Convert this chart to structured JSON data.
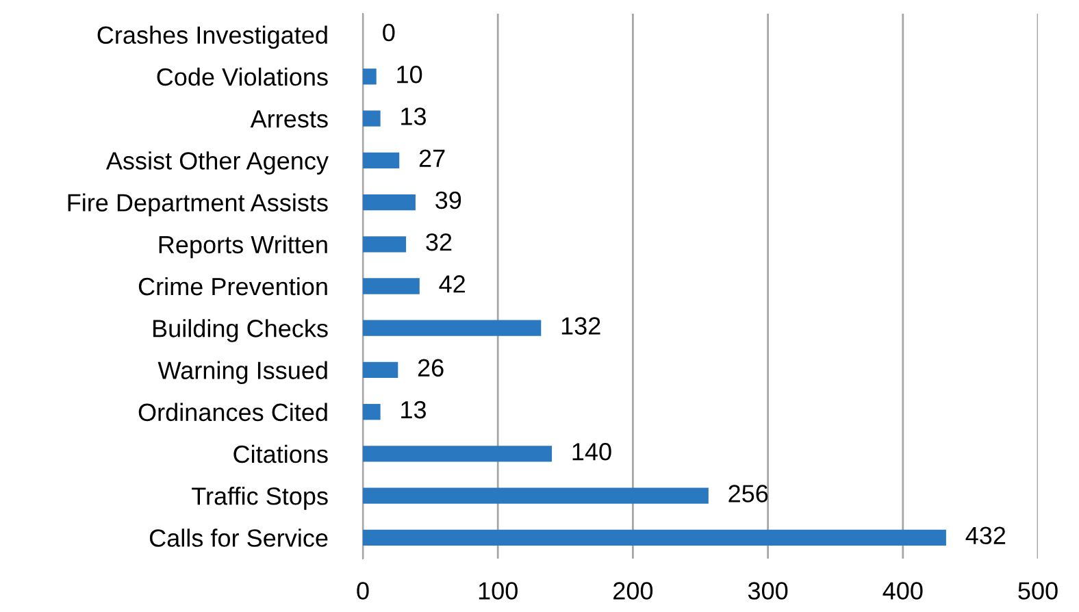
{
  "chart_data": {
    "type": "bar",
    "orientation": "horizontal",
    "categories": [
      "Crashes Investigated",
      "Code Violations",
      "Arrests",
      "Assist Other Agency",
      "Fire Department Assists",
      "Reports Written",
      "Crime Prevention",
      "Building Checks",
      "Warning Issued",
      "Ordinances Cited",
      "Citations",
      "Traffic Stops",
      "Calls for Service"
    ],
    "values": [
      0,
      10,
      13,
      27,
      39,
      32,
      42,
      132,
      26,
      13,
      140,
      256,
      432
    ],
    "color": "#2a78bf",
    "xlim": [
      0,
      500
    ],
    "xticks": [
      0,
      100,
      200,
      300,
      400,
      500
    ],
    "grid": "x",
    "data_labels": true
  }
}
